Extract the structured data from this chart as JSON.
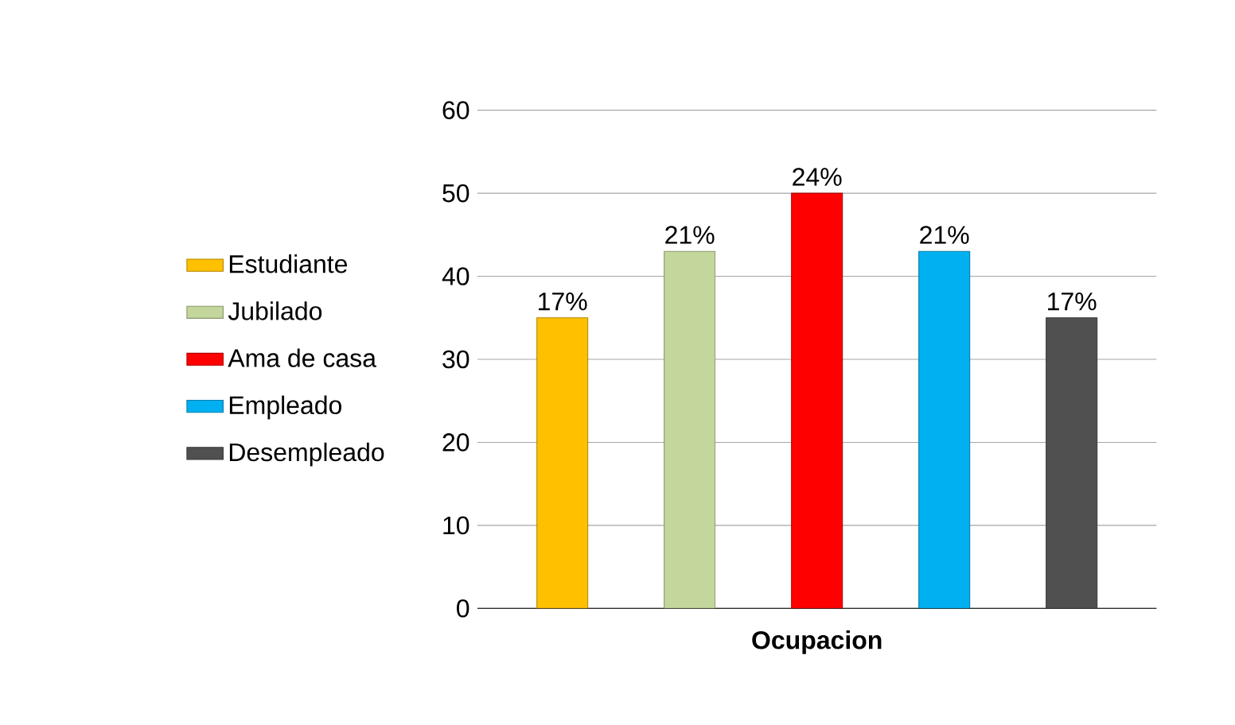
{
  "chart_data": {
    "type": "bar",
    "xlabel": "Ocupacion",
    "categories": [
      null
    ],
    "ylim": [
      0,
      60
    ],
    "yticks": [
      0,
      10,
      20,
      30,
      40,
      50,
      60
    ],
    "grid": "y",
    "legend": "left",
    "series": [
      {
        "name": "Estudiante",
        "color": "#ffc000",
        "values": [
          35
        ]
      },
      {
        "name": "Jubilado",
        "color": "#c3d69b",
        "values": [
          43
        ]
      },
      {
        "name": "Ama de casa",
        "color": "#ff0000",
        "values": [
          50
        ]
      },
      {
        "name": "Empleado",
        "color": "#00b0f0",
        "values": [
          43
        ]
      },
      {
        "name": "Desempleado",
        "color": "#505050",
        "values": [
          35
        ]
      }
    ],
    "annotations": [
      "17%",
      "21%",
      "24%",
      "21%",
      "17%"
    ]
  }
}
